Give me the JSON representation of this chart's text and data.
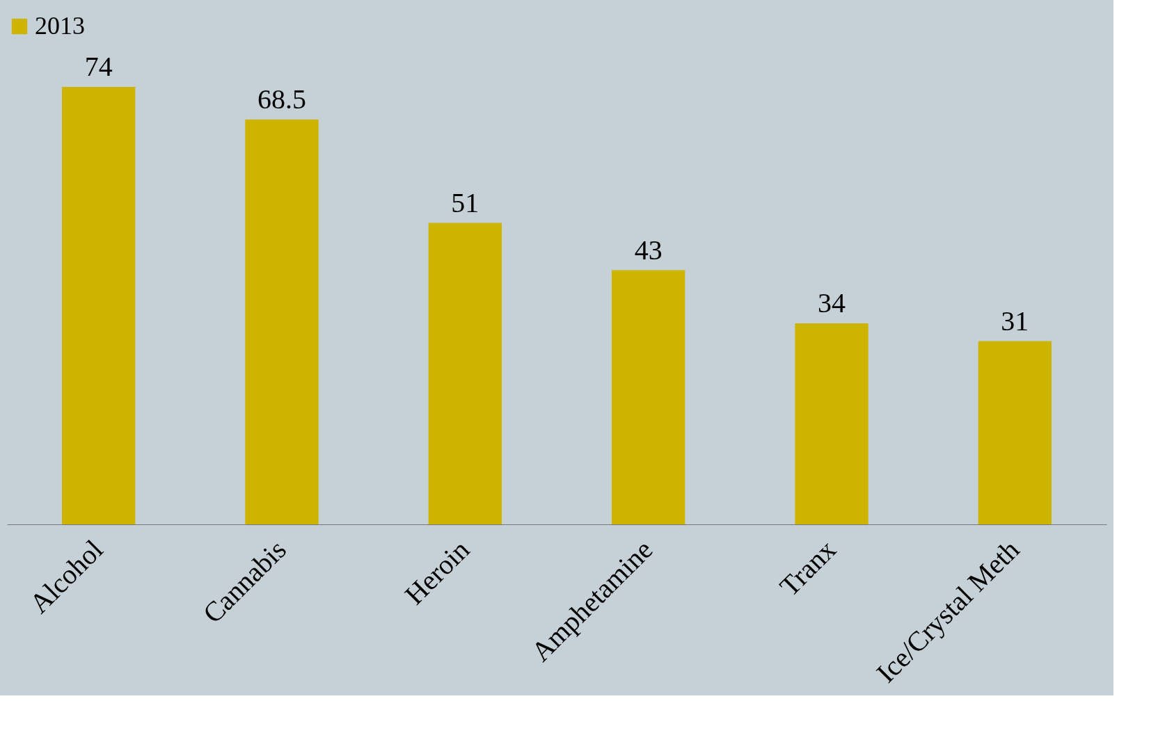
{
  "chart_data": {
    "type": "bar",
    "categories": [
      "Alcohol",
      "Cannabis",
      "Heroin",
      "Amphetamine",
      "Tranx",
      "Ice/Crystal Meth"
    ],
    "series": [
      {
        "name": "2013",
        "color": "#ccb400",
        "values": [
          74,
          68.5,
          51,
          43,
          34,
          31
        ]
      }
    ],
    "data_labels": true,
    "legend": "top",
    "grid": false
  }
}
